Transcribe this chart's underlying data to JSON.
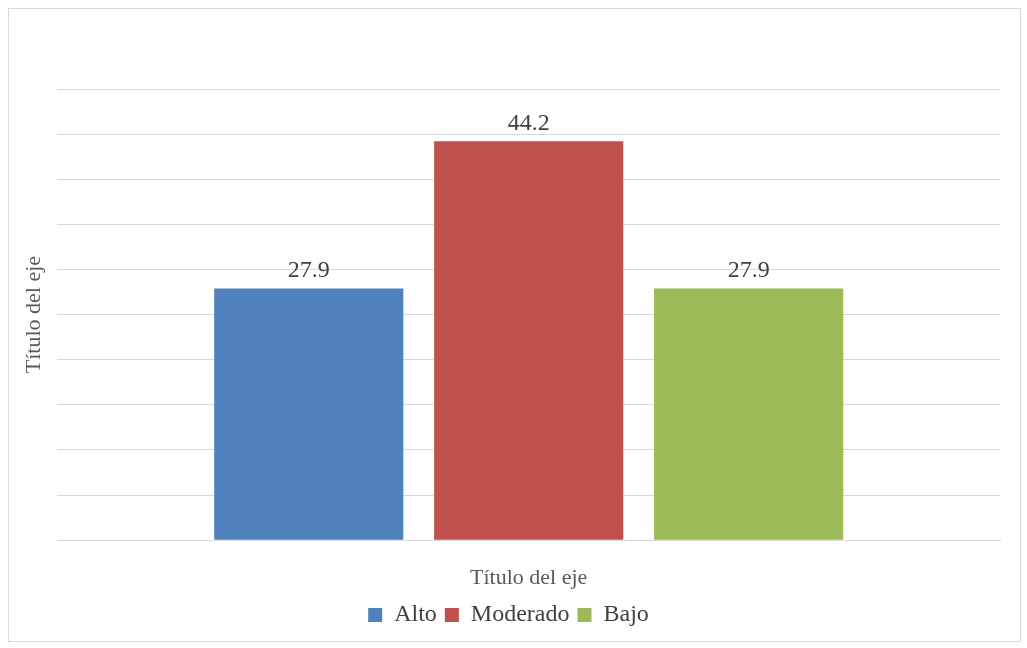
{
  "chart_data": {
    "type": "bar",
    "categories": [
      null
    ],
    "series": [
      {
        "name": "Alto",
        "color": "#4f81bd",
        "values": [
          27.9
        ]
      },
      {
        "name": "Moderado",
        "color": "#c0504d",
        "values": [
          44.2
        ]
      },
      {
        "name": "Bajo",
        "color": "#9bbb59",
        "values": [
          27.9
        ]
      }
    ],
    "xlabel": "Título del eje",
    "ylabel": "Título del eje",
    "ylim": [
      0,
      50
    ],
    "yticks": [
      {
        "value": 0,
        "label": null
      },
      {
        "value": 5,
        "label": null
      },
      {
        "value": 10,
        "label": null
      },
      {
        "value": 15,
        "label": null
      },
      {
        "value": 20,
        "label": null
      },
      {
        "value": 25,
        "label": null
      },
      {
        "value": 30,
        "label": null
      },
      {
        "value": 35,
        "label": null
      },
      {
        "value": 40,
        "label": null
      },
      {
        "value": 45,
        "label": null
      },
      {
        "value": 50,
        "label": null
      }
    ],
    "grid": "y",
    "legend": "bottom",
    "data_labels": true
  }
}
